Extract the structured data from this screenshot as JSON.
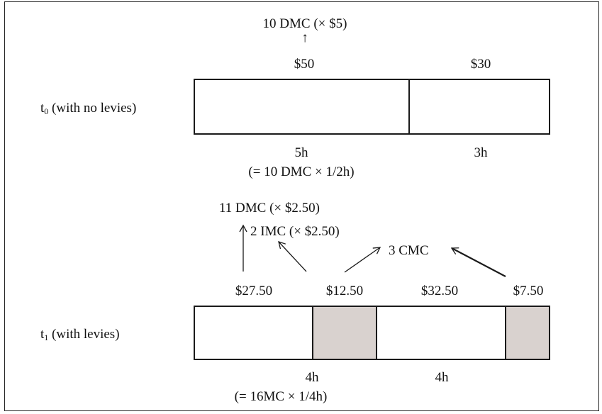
{
  "colors": {
    "shaded": "#d9d2cf",
    "line": "#1a1a1a"
  },
  "t0": {
    "label_main": "t",
    "label_sub": "0",
    "label_rest": " (with no levies)",
    "top_note": "10 DMC (× $5)",
    "top_arrow": "↑",
    "value_left": "$50",
    "value_right": "$30",
    "hours_left": "5h",
    "hours_right": "3h",
    "hours_note": "(= 10 DMC × 1/2h)"
  },
  "t1": {
    "label_main": "t",
    "label_sub": "1",
    "label_rest": " (with levies)",
    "dmc_note": "11 DMC (× $2.50)",
    "imc_note": "2 IMC (× $2.50)",
    "cmc_note": "3 CMC",
    "values": [
      "$27.50",
      "$12.50",
      "$32.50",
      "$7.50"
    ],
    "hours_left": "4h",
    "hours_right": "4h",
    "hours_note": "(= 16MC × 1/4h)"
  }
}
